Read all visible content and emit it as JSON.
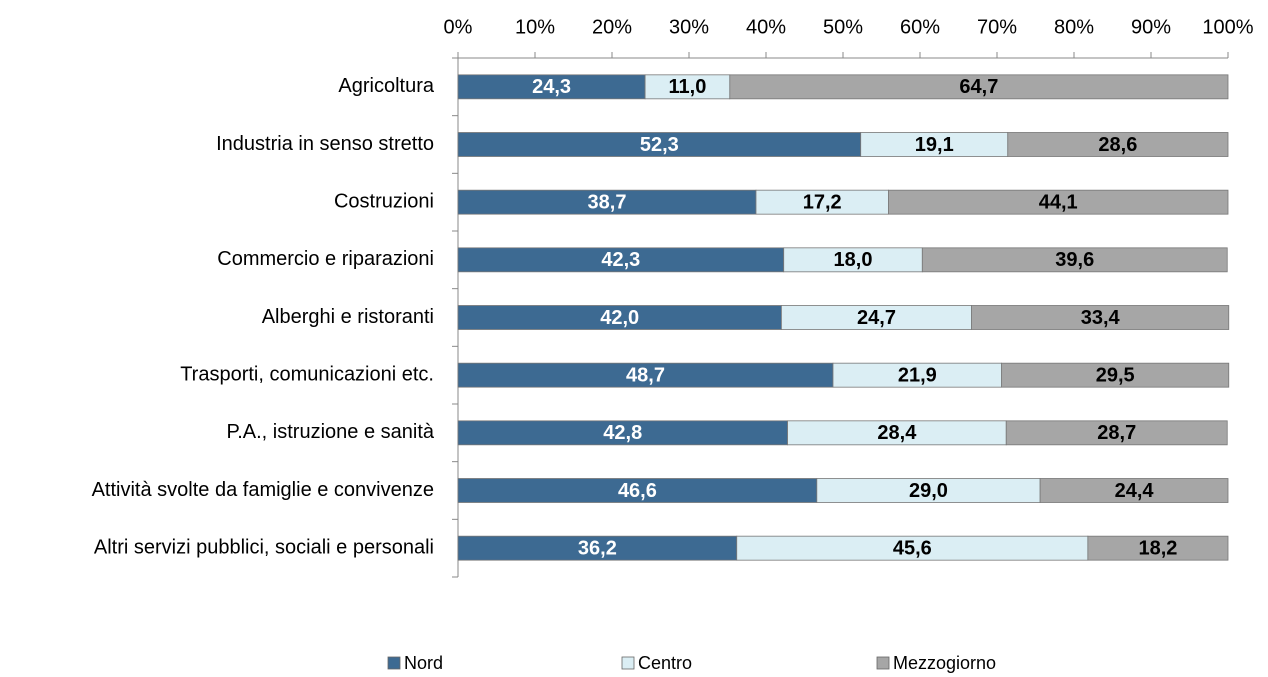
{
  "chart_data": {
    "type": "stacked_bar_horizontal",
    "categories": [
      "Agricoltura",
      "Industria in senso stretto",
      "Costruzioni",
      "Commercio e riparazioni",
      "Alberghi e ristoranti",
      "Trasporti, comunicazioni etc.",
      "P.A., istruzione e sanità",
      "Attività svolte da famiglie e convivenze",
      "Altri servizi pubblici, sociali e personali"
    ],
    "series": [
      {
        "name": "Nord",
        "color": "#3d6a92",
        "label_color": "#ffffff",
        "values": [
          24.3,
          52.3,
          38.7,
          42.3,
          42.0,
          48.7,
          42.8,
          46.6,
          36.2
        ],
        "value_labels": [
          "24,3",
          "52,3",
          "38,7",
          "42,3",
          "42,0",
          "48,7",
          "42,8",
          "46,6",
          "36,2"
        ]
      },
      {
        "name": "Centro",
        "color": "#dbeef4",
        "label_color": "#000000",
        "values": [
          11.0,
          19.1,
          17.2,
          18.0,
          24.7,
          21.9,
          28.4,
          29.0,
          45.6
        ],
        "value_labels": [
          "11,0",
          "19,1",
          "17,2",
          "18,0",
          "24,7",
          "21,9",
          "28,4",
          "29,0",
          "45,6"
        ]
      },
      {
        "name": "Mezzogiorno",
        "color": "#a6a6a6",
        "label_color": "#000000",
        "values": [
          64.7,
          28.6,
          44.1,
          39.6,
          33.4,
          29.5,
          28.7,
          24.4,
          18.2
        ],
        "value_labels": [
          "64,7",
          "28,6",
          "44,1",
          "39,6",
          "33,4",
          "29,5",
          "28,7",
          "24,4",
          "18,2"
        ]
      }
    ],
    "xlim": [
      0,
      100
    ],
    "xticks": [
      {
        "value": 0,
        "label": "0%"
      },
      {
        "value": 10,
        "label": "10%"
      },
      {
        "value": 20,
        "label": "20%"
      },
      {
        "value": 30,
        "label": "30%"
      },
      {
        "value": 40,
        "label": "40%"
      },
      {
        "value": 50,
        "label": "50%"
      },
      {
        "value": 60,
        "label": "60%"
      },
      {
        "value": 70,
        "label": "70%"
      },
      {
        "value": 80,
        "label": "80%"
      },
      {
        "value": 90,
        "label": "90%"
      },
      {
        "value": 100,
        "label": "100%"
      }
    ],
    "legend": "bottom"
  }
}
